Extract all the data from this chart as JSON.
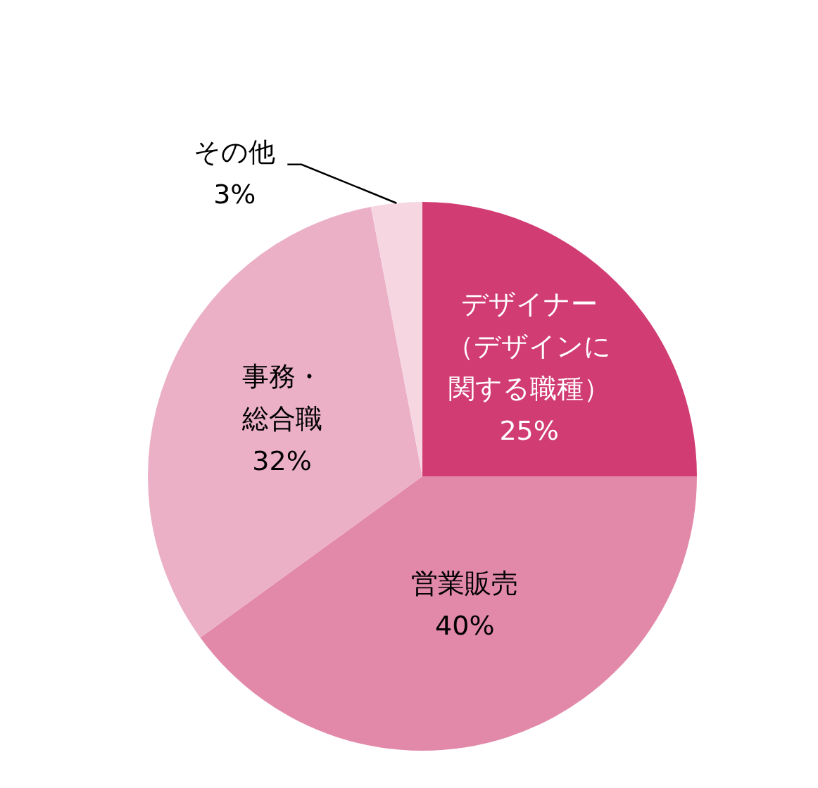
{
  "chart_data": {
    "type": "pie",
    "categories": [
      "デザイナー（デザインに関する職種）",
      "営業販売",
      "事務・総合職",
      "その他"
    ],
    "values": [
      25,
      40,
      32,
      3
    ],
    "value_labels": [
      "25%",
      "40%",
      "32%",
      "3%"
    ],
    "colors": [
      "#d13c72",
      "#e289a9",
      "#ebb0c6",
      "#f5d6e1"
    ]
  }
}
